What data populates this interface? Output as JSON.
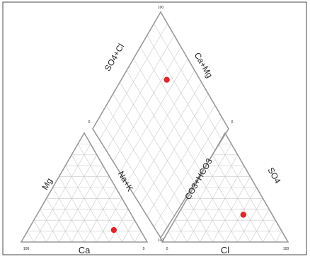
{
  "chart_data": {
    "type": "scatter",
    "subtype": "piper-trilinear",
    "colors": {
      "frame": "#9a9a9a",
      "grid": "#c9c9c9",
      "point": "#e0262b",
      "border": "#4a4a4a"
    },
    "cation_triangle": {
      "left_axis_label": "Mg",
      "right_axis_label": "Na+K",
      "bottom_axis_label": "Ca",
      "tick_left": "100",
      "tick_right": "0",
      "tick_apex": "",
      "points": [
        {
          "Ca": 21,
          "Mg": 11,
          "NaK": 68
        }
      ]
    },
    "anion_triangle": {
      "left_axis_label": "CO3+HCO3",
      "right_axis_label": "SO4",
      "bottom_axis_label": "Cl",
      "tick_left": "0",
      "tick_right": "100",
      "tick_apex": "",
      "points": [
        {
          "CO3_HCO3": 23,
          "SO4": 25,
          "Cl": 52
        }
      ]
    },
    "diamond": {
      "upper_left_label": "SO4+Cl",
      "upper_right_label": "Ca+Mg",
      "tick_top": "100",
      "tick_left": "0",
      "tick_right": "0",
      "tick_bottom": "100",
      "points": [
        {
          "Ca_Mg": 32,
          "SO4_Cl": 77
        }
      ]
    },
    "grid_divisions": 10
  }
}
